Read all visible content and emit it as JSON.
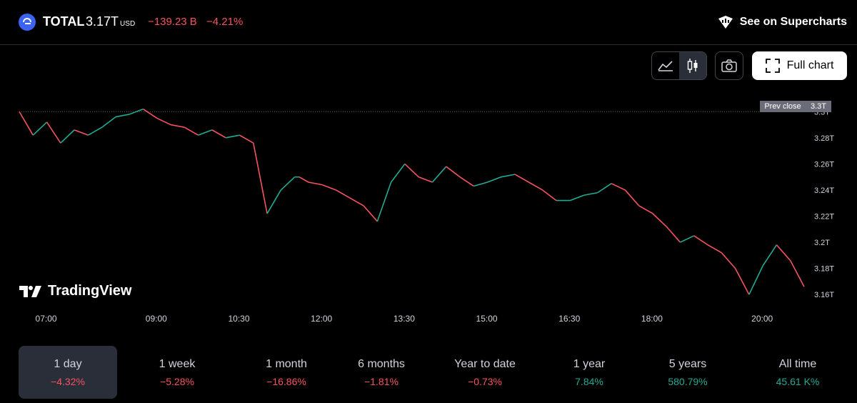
{
  "header": {
    "symbol": "TOTAL",
    "price": "3.17",
    "price_unit": "T",
    "currency": "USD",
    "change_abs": "−139.23 B",
    "change_pct": "−4.21%",
    "supercharts_label": "See on Supercharts",
    "full_chart_label": "Full chart"
  },
  "watermark": "TradingView",
  "colors": {
    "up": "#22ab94",
    "down": "#f7525f",
    "background": "#000000",
    "accent": "#3d63f2"
  },
  "icons": [
    "area-chart-icon",
    "candles-icon",
    "camera-icon",
    "fullscreen-icon",
    "supercharts-icon"
  ],
  "chart_data": {
    "type": "line",
    "xlabel": "",
    "ylabel": "",
    "x_ticks": [
      "07:00",
      "09:00",
      "10:30",
      "12:00",
      "13:30",
      "15:00",
      "16:30",
      "18:00",
      "20:00"
    ],
    "y_ticks": [
      "3.16T",
      "3.18T",
      "3.2T",
      "3.22T",
      "3.24T",
      "3.26T",
      "3.28T",
      "3.3T"
    ],
    "y_unit": "T",
    "ylim": [
      3.153,
      3.31
    ],
    "prev_close": {
      "label": "Prev close",
      "value": 3.3,
      "value_label": "3.3T"
    },
    "series": [
      {
        "x": [
          "06:30",
          "06:45",
          "07:00",
          "07:15",
          "07:30",
          "07:45",
          "08:00",
          "08:15",
          "08:30",
          "08:45",
          "09:00",
          "09:15",
          "09:30",
          "09:45",
          "10:00",
          "10:15",
          "10:30",
          "10:45",
          "11:00",
          "11:15",
          "11:30",
          "11:35",
          "11:45",
          "12:00",
          "12:15",
          "12:30",
          "12:45",
          "13:00",
          "13:15",
          "13:30",
          "13:45",
          "14:00",
          "14:15",
          "14:30",
          "14:45",
          "15:00",
          "15:15",
          "15:30",
          "15:45",
          "16:00",
          "16:15",
          "16:30",
          "16:45",
          "17:00",
          "17:15",
          "17:30",
          "17:45",
          "18:00",
          "18:15",
          "18:30",
          "18:45",
          "19:00",
          "19:15",
          "19:30",
          "19:45",
          "20:00",
          "20:15",
          "20:30",
          "20:45"
        ],
        "y": [
          3.3,
          3.282,
          3.292,
          3.276,
          3.286,
          3.282,
          3.288,
          3.296,
          3.298,
          3.302,
          3.295,
          3.29,
          3.288,
          3.282,
          3.286,
          3.28,
          3.282,
          3.276,
          3.222,
          3.24,
          3.25,
          3.25,
          3.246,
          3.244,
          3.24,
          3.234,
          3.228,
          3.216,
          3.246,
          3.26,
          3.25,
          3.246,
          3.258,
          3.25,
          3.243,
          3.246,
          3.25,
          3.252,
          3.246,
          3.24,
          3.232,
          3.232,
          3.236,
          3.238,
          3.245,
          3.24,
          3.228,
          3.222,
          3.212,
          3.2,
          3.205,
          3.198,
          3.192,
          3.18,
          3.16,
          3.182,
          3.198,
          3.186,
          3.166
        ]
      }
    ]
  },
  "periods": [
    {
      "label": "1 day",
      "value": "−4.32%",
      "trend": "neg"
    },
    {
      "label": "1 week",
      "value": "−5.28%",
      "trend": "neg"
    },
    {
      "label": "1 month",
      "value": "−16.86%",
      "trend": "neg"
    },
    {
      "label": "6 months",
      "value": "−1.81%",
      "trend": "neg"
    },
    {
      "label": "Year to date",
      "value": "−0.73%",
      "trend": "neg"
    },
    {
      "label": "1 year",
      "value": "7.84%",
      "trend": "pos"
    },
    {
      "label": "5 years",
      "value": "580.79%",
      "trend": "pos"
    },
    {
      "label": "All time",
      "value": "45.61 K%",
      "trend": "pos"
    }
  ]
}
